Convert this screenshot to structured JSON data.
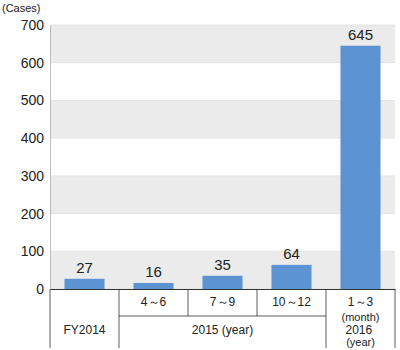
{
  "chart_data": {
    "type": "bar",
    "y_label": "(Cases)",
    "categories": [
      null,
      "4～6",
      "7～9",
      "10～12",
      "1～3"
    ],
    "category_groups": [
      "FY2014",
      "2015 (year)",
      "2015 (year)",
      "2015 (year)",
      "2016 (year)"
    ],
    "annotations": [
      "(month)"
    ],
    "values": [
      27,
      16,
      35,
      64,
      645
    ],
    "color": "#5b93d3",
    "ylim": [
      0,
      700
    ],
    "yticks": [
      0,
      100,
      200,
      300,
      400,
      500,
      600,
      700
    ],
    "grid": true,
    "data_labels": true
  }
}
